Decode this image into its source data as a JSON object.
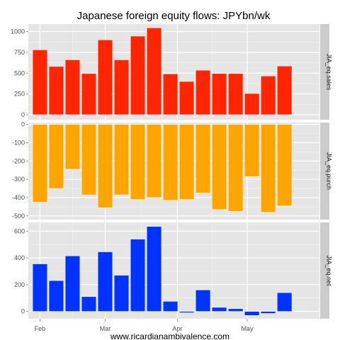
{
  "chart_data": {
    "type": "bar",
    "title": "Japanese foreign equity flows: JPYbn/wk",
    "xlabel": "www.ricardianambivalence.com",
    "x_tick_labels": [
      "Feb",
      "Mar",
      "Apr",
      "May"
    ],
    "x_tick_dates": [
      "2013-02-01",
      "2013-03-01",
      "2013-04-01",
      "2013-05-01"
    ],
    "week_dates": [
      "2013-02-01",
      "2013-02-08",
      "2013-02-15",
      "2013-02-22",
      "2013-03-01",
      "2013-03-08",
      "2013-03-15",
      "2013-03-22",
      "2013-03-29",
      "2013-04-05",
      "2013-04-12",
      "2013-04-19",
      "2013-04-26",
      "2013-05-03",
      "2013-05-10",
      "2013-05-17",
      "2013-05-24"
    ],
    "x_range": [
      "2013-01-27",
      "2013-06-01"
    ],
    "grid": true,
    "legend": "none",
    "facets": [
      {
        "name": "JIA_eq.sales",
        "color": "#FF2500",
        "ylim": [
          -60,
          1090
        ],
        "yticks": [
          0,
          250,
          500,
          750,
          1000
        ],
        "values": [
          780,
          580,
          660,
          495,
          900,
          660,
          945,
          1045,
          490,
          400,
          535,
          495,
          495,
          255,
          465,
          585,
          0
        ]
      },
      {
        "name": "JIA_eq.purch",
        "color": "#FFA500",
        "ylim": [
          -520,
          10
        ],
        "yticks": [
          0,
          -100,
          -200,
          -300,
          -400,
          -500
        ],
        "values": [
          -425,
          -350,
          -245,
          -385,
          -455,
          -385,
          -410,
          -400,
          -415,
          -410,
          -375,
          -465,
          -475,
          -285,
          -480,
          -445,
          0
        ]
      },
      {
        "name": "JIA_eq.net",
        "color": "#0033FF",
        "ylim": [
          -55,
          665
        ],
        "yticks": [
          0,
          200,
          400,
          600
        ],
        "values": [
          355,
          230,
          415,
          110,
          445,
          270,
          540,
          635,
          75,
          -10,
          160,
          30,
          20,
          -30,
          -15,
          140,
          0
        ]
      }
    ]
  }
}
